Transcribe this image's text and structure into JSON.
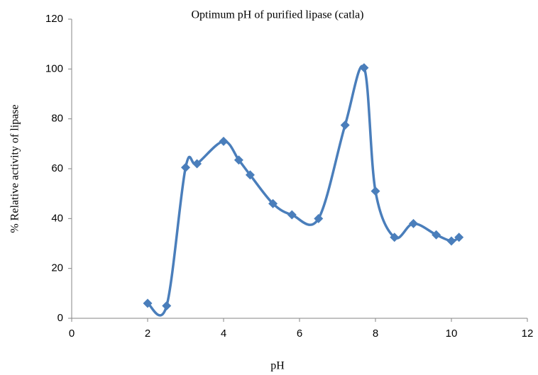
{
  "chart_data": {
    "type": "scatter-smooth",
    "title": "Optimum pH of purified lipase (catla)",
    "x_label": "pH",
    "y_label": "% Relative activity of lipase",
    "x": [
      2,
      2.5,
      3,
      3.3,
      4,
      4.4,
      4.7,
      5.3,
      5.8,
      6.5,
      7.2,
      7.7,
      8,
      8.5,
      9,
      9.6,
      10,
      10.2
    ],
    "values": [
      6,
      5,
      60.5,
      62,
      71,
      63.5,
      57.5,
      46,
      41.5,
      40,
      77.5,
      100.5,
      51,
      32.5,
      38,
      33.5,
      31,
      32.5
    ],
    "color": "#4a7ebb",
    "xlim": [
      0,
      12
    ],
    "xticks": [
      0,
      2,
      4,
      6,
      8,
      10,
      12
    ],
    "ylim": [
      0,
      120
    ],
    "yticks": [
      0,
      20,
      40,
      60,
      80,
      100,
      120
    ],
    "grid": false
  }
}
